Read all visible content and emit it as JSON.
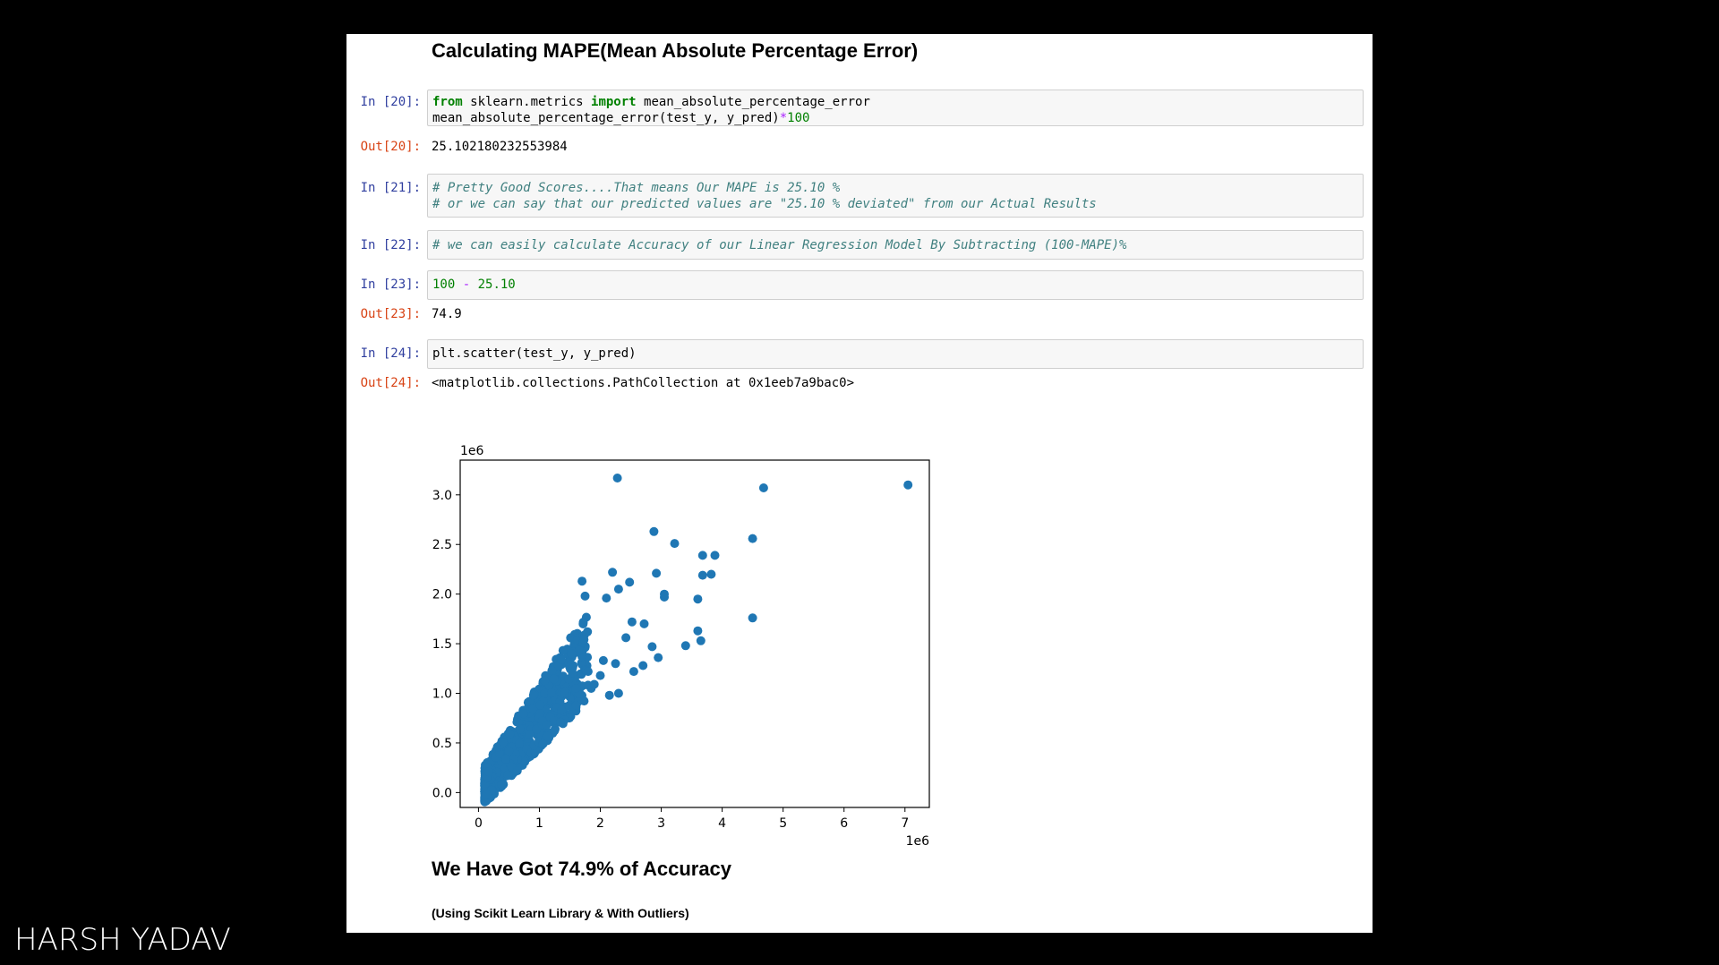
{
  "heading": "Calculating MAPE(Mean Absolute Percentage Error)",
  "cells": {
    "c20": {
      "in_prompt": "In [20]:",
      "kw_from": "from",
      "module": " sklearn.metrics ",
      "kw_import": "import",
      "func": " mean_absolute_percentage_error",
      "line2_a": "mean_absolute_percentage_error(test_y, y_pred)",
      "line2_op": "*",
      "line2_num": "100",
      "out_prompt": "Out[20]:",
      "out": "25.102180232553984"
    },
    "c21": {
      "in_prompt": "In [21]:",
      "line1": "# Pretty Good Scores....That means Our MAPE is 25.10 %",
      "line2": "# or we can say that our predicted values are \"25.10 % deviated\" from our Actual Results"
    },
    "c22": {
      "in_prompt": "In [22]:",
      "line1": "# we can easily calculate Accuracy of our Linear Regression Model By Subtracting (100-MAPE)%"
    },
    "c23": {
      "in_prompt": "In [23]:",
      "num1": "100",
      "op": " - ",
      "num2": "25.10",
      "out_prompt": "Out[23]:",
      "out": "74.9"
    },
    "c24": {
      "in_prompt": "In [24]:",
      "code": "plt.scatter(test_y, y_pred)",
      "out_prompt": "Out[24]:",
      "out": "<matplotlib.collections.PathCollection at 0x1eeb7a9bac0>"
    }
  },
  "result_heading": "We Have Got 74.9% of Accuracy",
  "result_note": "(Using Scikit Learn Library & With Outliers)",
  "watermark": "HARSH YADAV",
  "chart_data": {
    "type": "scatter",
    "x_offset_label": "1e6",
    "y_offset_label": "1e6",
    "xlim": [
      -0.3,
      7.4
    ],
    "ylim": [
      -0.15,
      3.35
    ],
    "xticks": [
      0,
      1,
      2,
      3,
      4,
      5,
      6,
      7
    ],
    "yticks": [
      0.0,
      0.5,
      1.0,
      1.5,
      2.0,
      2.5,
      3.0
    ],
    "ytick_labels": [
      "0.0",
      "0.5",
      "1.0",
      "1.5",
      "2.0",
      "2.5",
      "3.0"
    ],
    "color": "#1f77b4",
    "series": [
      {
        "x": [
          2.28,
          4.68,
          7.05,
          2.88,
          3.22,
          3.68,
          3.88,
          4.5,
          3.68,
          3.82,
          2.2,
          2.48,
          2.92,
          3.05,
          1.7,
          3.05,
          3.6,
          4.5,
          1.75,
          2.1,
          2.3,
          2.52,
          2.72,
          3.6,
          3.65,
          3.4,
          2.85,
          2.95,
          2.42,
          2.7,
          2.05,
          2.55,
          2.0,
          2.25,
          1.8,
          1.85,
          2.3,
          2.15,
          1.6,
          1.9
        ],
        "y": [
          3.17,
          3.07,
          3.1,
          2.63,
          2.51,
          2.39,
          2.39,
          2.56,
          2.19,
          2.2,
          2.22,
          2.12,
          2.21,
          1.97,
          2.13,
          2.0,
          1.95,
          1.76,
          1.98,
          1.96,
          2.05,
          1.72,
          1.7,
          1.63,
          1.53,
          1.48,
          1.47,
          1.36,
          1.56,
          1.28,
          1.33,
          1.22,
          1.18,
          1.3,
          1.22,
          1.05,
          1.0,
          0.98,
          1.05,
          1.09
        ]
      }
    ]
  }
}
